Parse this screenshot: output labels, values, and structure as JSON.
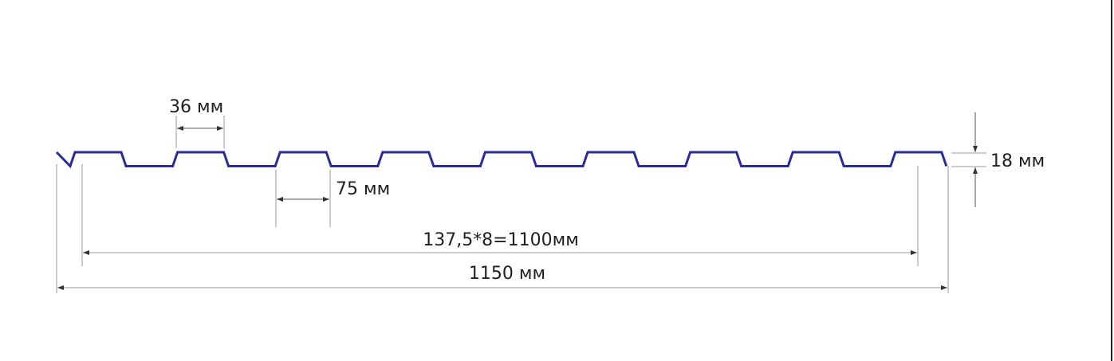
{
  "diagram": {
    "profile_color": "#2b2a9a",
    "dimension_color": "#9a9a9a",
    "labels": {
      "rib_top_width": "36 мм",
      "rib_bottom_width": "75 мм",
      "profile_height": "18 мм",
      "useful_width": "137,5*8=1100мм",
      "total_width": "1150 мм"
    }
  }
}
